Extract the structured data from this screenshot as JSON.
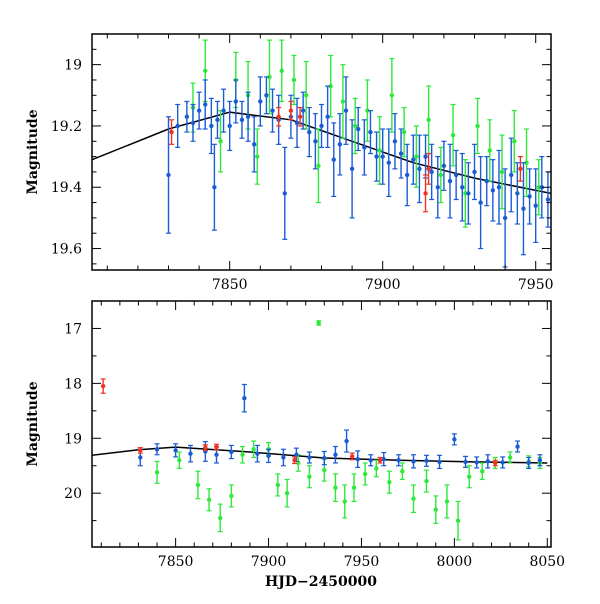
{
  "chart_data": [
    {
      "type": "scatter",
      "title": "",
      "xlabel": "",
      "ylabel": "Magnitude",
      "xlim": [
        7805,
        7955
      ],
      "ylim": [
        19.67,
        18.9
      ],
      "y_inverted": true,
      "x_ticks": [
        7850,
        7900,
        7950
      ],
      "x_tick_labels": [
        "7850",
        "7900",
        "7950"
      ],
      "y_ticks": [
        19.0,
        19.2,
        19.4,
        19.6
      ],
      "y_tick_labels": [
        "19",
        "19.2",
        "19.4",
        "19.6"
      ],
      "grid": false,
      "colors": {
        "blue": "#1a5bd6",
        "green": "#2ee83a",
        "red": "#ee3322",
        "model": "#000000"
      },
      "model_curve": [
        [
          7805,
          19.31
        ],
        [
          7830,
          19.21
        ],
        [
          7850,
          19.155
        ],
        [
          7870,
          19.18
        ],
        [
          7890,
          19.25
        ],
        [
          7910,
          19.32
        ],
        [
          7930,
          19.37
        ],
        [
          7955,
          19.42
        ]
      ],
      "series": [
        {
          "color": "blue",
          "points": [
            [
              7830,
              19.36,
              0.19
            ],
            [
              7833,
              19.2,
              0.07
            ],
            [
              7836,
              19.17,
              0.05
            ],
            [
              7838,
              19.19,
              0.06
            ],
            [
              7840,
              19.15,
              0.06
            ],
            [
              7842,
              19.13,
              0.08
            ],
            [
              7844,
              19.2,
              0.09
            ],
            [
              7845,
              19.4,
              0.14
            ],
            [
              7846,
              19.18,
              0.06
            ],
            [
              7848,
              19.15,
              0.07
            ],
            [
              7850,
              19.2,
              0.08
            ],
            [
              7852,
              19.12,
              0.07
            ],
            [
              7854,
              19.18,
              0.06
            ],
            [
              7856,
              19.17,
              0.08
            ],
            [
              7858,
              19.26,
              0.09
            ],
            [
              7860,
              19.12,
              0.08
            ],
            [
              7862,
              19.1,
              0.06
            ],
            [
              7864,
              19.15,
              0.07
            ],
            [
              7866,
              19.18,
              0.08
            ],
            [
              7868,
              19.42,
              0.15
            ],
            [
              7870,
              19.17,
              0.07
            ],
            [
              7872,
              19.19,
              0.08
            ],
            [
              7874,
              19.15,
              0.06
            ],
            [
              7876,
              19.22,
              0.08
            ],
            [
              7878,
              19.25,
              0.09
            ],
            [
              7880,
              19.2,
              0.07
            ],
            [
              7882,
              19.17,
              0.1
            ],
            [
              7884,
              19.31,
              0.12
            ],
            [
              7886,
              19.26,
              0.1
            ],
            [
              7888,
              19.15,
              0.11
            ],
            [
              7890,
              19.34,
              0.16
            ],
            [
              7892,
              19.21,
              0.07
            ],
            [
              7894,
              19.27,
              0.09
            ],
            [
              7896,
              19.22,
              0.07
            ],
            [
              7898,
              19.3,
              0.08
            ],
            [
              7900,
              19.3,
              0.09
            ],
            [
              7902,
              19.32,
              0.11
            ],
            [
              7904,
              19.25,
              0.09
            ],
            [
              7906,
              19.29,
              0.08
            ],
            [
              7908,
              19.36,
              0.1
            ],
            [
              7910,
              19.31,
              0.08
            ],
            [
              7912,
              19.34,
              0.11
            ],
            [
              7914,
              19.3,
              0.07
            ],
            [
              7916,
              19.35,
              0.09
            ],
            [
              7918,
              19.4,
              0.1
            ],
            [
              7920,
              19.33,
              0.08
            ],
            [
              7922,
              19.38,
              0.12
            ],
            [
              7924,
              19.36,
              0.08
            ],
            [
              7926,
              19.4,
              0.11
            ],
            [
              7928,
              19.42,
              0.1
            ],
            [
              7930,
              19.35,
              0.09
            ],
            [
              7932,
              19.45,
              0.15
            ],
            [
              7934,
              19.38,
              0.08
            ],
            [
              7936,
              19.41,
              0.1
            ],
            [
              7938,
              19.4,
              0.12
            ],
            [
              7940,
              19.5,
              0.16
            ],
            [
              7942,
              19.36,
              0.12
            ],
            [
              7944,
              19.42,
              0.1
            ],
            [
              7946,
              19.47,
              0.15
            ],
            [
              7948,
              19.43,
              0.09
            ],
            [
              7950,
              19.46,
              0.12
            ],
            [
              7952,
              19.4,
              0.1
            ],
            [
              7954,
              19.44,
              0.09
            ]
          ]
        },
        {
          "color": "green",
          "points": [
            [
              7838,
              19.14,
              0.08
            ],
            [
              7842,
              19.02,
              0.1
            ],
            [
              7847,
              19.25,
              0.1
            ],
            [
              7852,
              19.05,
              0.09
            ],
            [
              7856,
              19.1,
              0.11
            ],
            [
              7859,
              19.3,
              0.09
            ],
            [
              7863,
              19.04,
              0.12
            ],
            [
              7867,
              19.02,
              0.1
            ],
            [
              7871,
              19.05,
              0.08
            ],
            [
              7875,
              19.1,
              0.11
            ],
            [
              7879,
              19.33,
              0.12
            ],
            [
              7883,
              19.07,
              0.1
            ],
            [
              7887,
              19.12,
              0.12
            ],
            [
              7891,
              19.2,
              0.09
            ],
            [
              7895,
              19.15,
              0.1
            ],
            [
              7899,
              19.28,
              0.11
            ],
            [
              7903,
              19.1,
              0.12
            ],
            [
              7907,
              19.22,
              0.08
            ],
            [
              7911,
              19.3,
              0.1
            ],
            [
              7915,
              19.18,
              0.11
            ],
            [
              7919,
              19.36,
              0.09
            ],
            [
              7923,
              19.23,
              0.1
            ],
            [
              7927,
              19.42,
              0.11
            ],
            [
              7931,
              19.2,
              0.09
            ],
            [
              7935,
              19.28,
              0.1
            ],
            [
              7939,
              19.35,
              0.12
            ],
            [
              7943,
              19.25,
              0.1
            ],
            [
              7947,
              19.32,
              0.11
            ],
            [
              7951,
              19.4,
              0.09
            ]
          ]
        },
        {
          "color": "red",
          "points": [
            [
              7831,
              19.22,
              0.04
            ],
            [
              7866,
              19.17,
              0.03
            ],
            [
              7870,
              19.15,
              0.03
            ],
            [
              7873,
              19.17,
              0.03
            ],
            [
              7914,
              19.42,
              0.06
            ],
            [
              7915,
              19.34,
              0.05
            ],
            [
              7945,
              19.34,
              0.04
            ]
          ]
        }
      ]
    },
    {
      "type": "scatter",
      "title": "",
      "xlabel": "HJD−2450000",
      "ylabel": "Magnitude",
      "xlim": [
        7805,
        8052
      ],
      "ylim": [
        20.98,
        16.5
      ],
      "y_inverted": true,
      "x_ticks": [
        7850,
        7900,
        7950,
        8000,
        8050
      ],
      "x_tick_labels": [
        "7850",
        "7900",
        "7950",
        "8000",
        "8050"
      ],
      "y_ticks": [
        17,
        18,
        19,
        20
      ],
      "y_tick_labels": [
        "17",
        "18",
        "19",
        "20"
      ],
      "grid": false,
      "colors": {
        "blue": "#1a5bd6",
        "green": "#2ee83a",
        "red": "#ee3322",
        "model": "#000000"
      },
      "model_curve": [
        [
          7805,
          19.31
        ],
        [
          7830,
          19.21
        ],
        [
          7850,
          19.16
        ],
        [
          7890,
          19.25
        ],
        [
          7930,
          19.36
        ],
        [
          7970,
          19.4
        ],
        [
          8010,
          19.43
        ],
        [
          8050,
          19.45
        ]
      ],
      "series": [
        {
          "color": "blue",
          "points": [
            [
              7831,
              19.35,
              0.15
            ],
            [
              7840,
              19.2,
              0.1
            ],
            [
              7850,
              19.22,
              0.12
            ],
            [
              7858,
              19.28,
              0.15
            ],
            [
              7866,
              19.24,
              0.18
            ],
            [
              7872,
              19.3,
              0.15
            ],
            [
              7880,
              19.25,
              0.12
            ],
            [
              7887,
              18.27,
              0.25
            ],
            [
              7894,
              19.28,
              0.15
            ],
            [
              7900,
              19.32,
              0.12
            ],
            [
              7908,
              19.35,
              0.15
            ],
            [
              7915,
              19.3,
              0.12
            ],
            [
              7922,
              19.35,
              0.1
            ],
            [
              7930,
              19.36,
              0.12
            ],
            [
              7936,
              19.3,
              0.15
            ],
            [
              7942,
              19.05,
              0.2
            ],
            [
              7948,
              19.38,
              0.15
            ],
            [
              7955,
              19.4,
              0.1
            ],
            [
              7962,
              19.38,
              0.12
            ],
            [
              7970,
              19.4,
              0.1
            ],
            [
              7978,
              19.42,
              0.12
            ],
            [
              7985,
              19.41,
              0.1
            ],
            [
              7992,
              19.43,
              0.12
            ],
            [
              8000,
              19.02,
              0.1
            ],
            [
              8006,
              19.43,
              0.1
            ],
            [
              8012,
              19.44,
              0.1
            ],
            [
              8018,
              19.42,
              0.12
            ],
            [
              8026,
              19.44,
              0.1
            ],
            [
              8034,
              19.15,
              0.1
            ],
            [
              8040,
              19.45,
              0.1
            ],
            [
              8046,
              19.4,
              0.1
            ]
          ]
        },
        {
          "color": "green",
          "points": [
            [
              7840,
              19.62,
              0.2
            ],
            [
              7852,
              19.4,
              0.15
            ],
            [
              7862,
              19.85,
              0.25
            ],
            [
              7868,
              20.12,
              0.2
            ],
            [
              7874,
              20.45,
              0.25
            ],
            [
              7880,
              20.05,
              0.2
            ],
            [
              7886,
              19.3,
              0.15
            ],
            [
              7892,
              19.2,
              0.15
            ],
            [
              7900,
              19.2,
              0.12
            ],
            [
              7905,
              19.85,
              0.2
            ],
            [
              7910,
              20.0,
              0.25
            ],
            [
              7916,
              19.45,
              0.15
            ],
            [
              7922,
              19.7,
              0.2
            ],
            [
              7927,
              16.9,
              0.04
            ],
            [
              7930,
              19.58,
              0.2
            ],
            [
              7936,
              19.9,
              0.25
            ],
            [
              7941,
              20.15,
              0.3
            ],
            [
              7946,
              19.9,
              0.25
            ],
            [
              7952,
              19.65,
              0.2
            ],
            [
              7958,
              19.55,
              0.15
            ],
            [
              7965,
              19.8,
              0.2
            ],
            [
              7972,
              19.6,
              0.15
            ],
            [
              7978,
              20.1,
              0.25
            ],
            [
              7985,
              19.78,
              0.2
            ],
            [
              7990,
              20.3,
              0.25
            ],
            [
              7996,
              20.15,
              0.3
            ],
            [
              8002,
              20.5,
              0.35
            ],
            [
              8008,
              19.7,
              0.2
            ],
            [
              8015,
              19.6,
              0.15
            ],
            [
              8022,
              19.45,
              0.1
            ],
            [
              8030,
              19.35,
              0.1
            ],
            [
              8040,
              19.42,
              0.1
            ],
            [
              8046,
              19.45,
              0.1
            ]
          ]
        },
        {
          "color": "red",
          "points": [
            [
              7811,
              18.05,
              0.13
            ],
            [
              7831,
              19.22,
              0.05
            ],
            [
              7866,
              19.17,
              0.05
            ],
            [
              7872,
              19.16,
              0.05
            ],
            [
              7914,
              19.4,
              0.06
            ],
            [
              7945,
              19.33,
              0.06
            ],
            [
              7960,
              19.4,
              0.05
            ],
            [
              8022,
              19.45,
              0.05
            ]
          ]
        }
      ]
    }
  ]
}
